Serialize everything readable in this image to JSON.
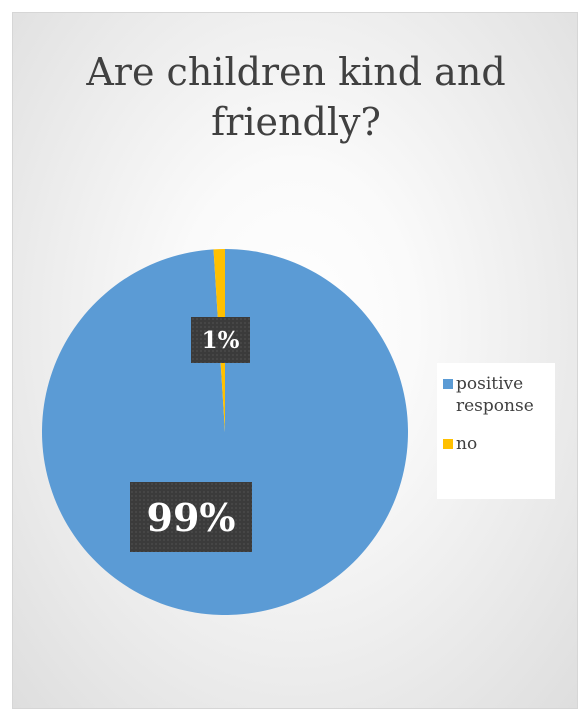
{
  "chart_data": {
    "type": "pie",
    "title": "Are children kind and friendly?",
    "title_lines": [
      "Are children kind and",
      "friendly?"
    ],
    "categories": [
      "positive response",
      "no"
    ],
    "values": [
      99,
      1
    ],
    "data_labels": [
      "99%",
      "1%"
    ],
    "colors": [
      "#5B9BD5",
      "#FFC000"
    ],
    "legend_placement": "right"
  }
}
